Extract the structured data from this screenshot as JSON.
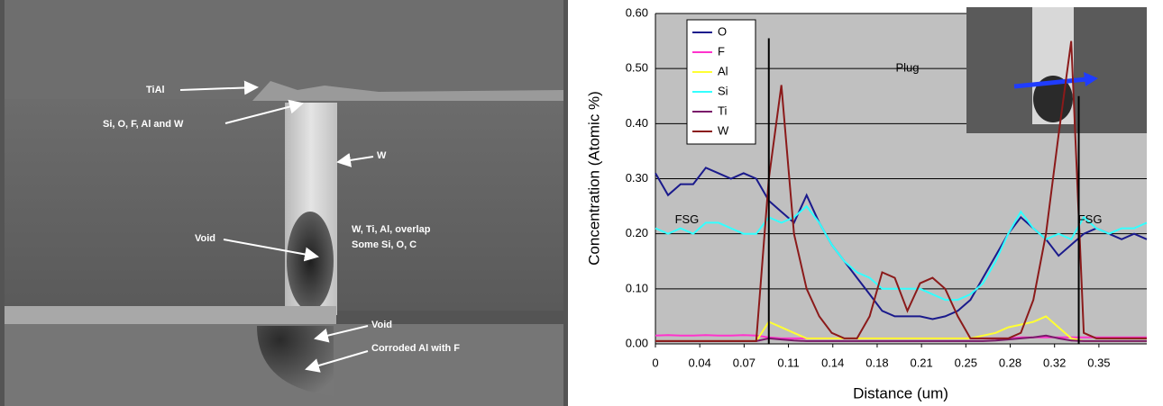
{
  "image": {
    "labels": [
      "TiAl",
      "Si, O, F, Al and W",
      "W",
      "W, Ti, Al, overlap",
      "Some Si, O, C",
      "Void",
      "Void",
      "Corroded Al with F"
    ]
  },
  "chart_data": {
    "type": "line",
    "ylabel": "Concentration (Atomic %)",
    "xlabel": "Distance (um)",
    "xlim": [
      0,
      0.39
    ],
    "ylim": [
      0,
      0.6
    ],
    "xticks": [
      {
        "value": 0,
        "label": "0"
      },
      {
        "value": 0.0352,
        "label": "0.04"
      },
      {
        "value": 0.0704,
        "label": "0.07"
      },
      {
        "value": 0.1056,
        "label": "0.11"
      },
      {
        "value": 0.1408,
        "label": "0.14"
      },
      {
        "value": 0.176,
        "label": "0.18"
      },
      {
        "value": 0.2112,
        "label": "0.21"
      },
      {
        "value": 0.2464,
        "label": "0.25"
      },
      {
        "value": 0.2816,
        "label": "0.28"
      },
      {
        "value": 0.3168,
        "label": "0.32"
      },
      {
        "value": 0.352,
        "label": "0.35"
      }
    ],
    "yticks": [
      {
        "value": 0,
        "label": "0.00"
      },
      {
        "value": 0.1,
        "label": "0.10"
      },
      {
        "value": 0.2,
        "label": "0.20"
      },
      {
        "value": 0.3,
        "label": "0.30"
      },
      {
        "value": 0.4,
        "label": "0.40"
      },
      {
        "value": 0.5,
        "label": "0.50"
      },
      {
        "value": 0.6,
        "label": "0.60"
      }
    ],
    "grid": true,
    "legend": "top-left",
    "annotations": [
      {
        "text": "Plug",
        "x": 0.2,
        "y": 0.5
      },
      {
        "text": "FSG",
        "x": 0.025,
        "y": 0.225
      },
      {
        "text": "FSG",
        "x": 0.345,
        "y": 0.225
      }
    ],
    "vlines": [
      {
        "x": 0.09,
        "top": 0.555
      },
      {
        "x": 0.336,
        "top": 0.45
      }
    ],
    "x": [
      0,
      0.01,
      0.02,
      0.03,
      0.04,
      0.05,
      0.06,
      0.07,
      0.08,
      0.09,
      0.1,
      0.11,
      0.12,
      0.13,
      0.14,
      0.15,
      0.16,
      0.17,
      0.18,
      0.19,
      0.2,
      0.21,
      0.22,
      0.23,
      0.24,
      0.25,
      0.26,
      0.27,
      0.28,
      0.29,
      0.3,
      0.31,
      0.32,
      0.33,
      0.34,
      0.35,
      0.36,
      0.37,
      0.38,
      0.39
    ],
    "series": [
      {
        "name": "O",
        "color": "#1a1a8c",
        "values": [
          0.31,
          0.27,
          0.29,
          0.29,
          0.32,
          0.31,
          0.3,
          0.31,
          0.3,
          0.26,
          0.24,
          0.22,
          0.27,
          0.22,
          0.18,
          0.15,
          0.12,
          0.09,
          0.06,
          0.05,
          0.05,
          0.05,
          0.045,
          0.05,
          0.06,
          0.08,
          0.12,
          0.16,
          0.2,
          0.23,
          0.21,
          0.19,
          0.16,
          0.18,
          0.2,
          0.21,
          0.2,
          0.19,
          0.2,
          0.19
        ]
      },
      {
        "name": "F",
        "color": "#ff33cc",
        "values": [
          0.015,
          0.016,
          0.015,
          0.015,
          0.016,
          0.015,
          0.015,
          0.016,
          0.015,
          0.012,
          0.01,
          0.01,
          0.01,
          0.01,
          0.01,
          0.01,
          0.01,
          0.01,
          0.01,
          0.01,
          0.01,
          0.01,
          0.01,
          0.01,
          0.01,
          0.01,
          0.01,
          0.01,
          0.01,
          0.012,
          0.012,
          0.012,
          0.012,
          0.012,
          0.012,
          0.012,
          0.012,
          0.012,
          0.012,
          0.012
        ]
      },
      {
        "name": "Al",
        "color": "#ffff33",
        "values": [
          0.005,
          0.005,
          0.005,
          0.005,
          0.005,
          0.005,
          0.005,
          0.005,
          0.005,
          0.04,
          0.03,
          0.02,
          0.01,
          0.01,
          0.01,
          0.01,
          0.01,
          0.01,
          0.01,
          0.01,
          0.01,
          0.01,
          0.01,
          0.01,
          0.01,
          0.01,
          0.015,
          0.02,
          0.03,
          0.035,
          0.04,
          0.05,
          0.03,
          0.01,
          0.005,
          0.005,
          0.005,
          0.005,
          0.005,
          0.005
        ]
      },
      {
        "name": "Si",
        "color": "#33ffff",
        "values": [
          0.21,
          0.2,
          0.21,
          0.2,
          0.22,
          0.22,
          0.21,
          0.2,
          0.2,
          0.23,
          0.22,
          0.23,
          0.25,
          0.22,
          0.18,
          0.15,
          0.13,
          0.12,
          0.1,
          0.1,
          0.1,
          0.1,
          0.09,
          0.08,
          0.08,
          0.09,
          0.11,
          0.15,
          0.2,
          0.24,
          0.21,
          0.19,
          0.2,
          0.19,
          0.23,
          0.21,
          0.2,
          0.21,
          0.21,
          0.22
        ]
      },
      {
        "name": "Ti",
        "color": "#7a1a6a",
        "values": [
          0.005,
          0.005,
          0.005,
          0.005,
          0.005,
          0.005,
          0.005,
          0.005,
          0.005,
          0.01,
          0.008,
          0.006,
          0.005,
          0.005,
          0.005,
          0.005,
          0.005,
          0.005,
          0.005,
          0.005,
          0.005,
          0.005,
          0.005,
          0.005,
          0.005,
          0.005,
          0.005,
          0.006,
          0.008,
          0.01,
          0.012,
          0.015,
          0.01,
          0.006,
          0.005,
          0.005,
          0.005,
          0.005,
          0.005,
          0.005
        ]
      },
      {
        "name": "W",
        "color": "#8b1a1a",
        "values": [
          0.005,
          0.005,
          0.005,
          0.005,
          0.005,
          0.005,
          0.005,
          0.005,
          0.005,
          0.3,
          0.47,
          0.2,
          0.1,
          0.05,
          0.02,
          0.01,
          0.01,
          0.05,
          0.13,
          0.12,
          0.06,
          0.11,
          0.12,
          0.1,
          0.05,
          0.01,
          0.01,
          0.01,
          0.01,
          0.02,
          0.08,
          0.2,
          0.38,
          0.55,
          0.02,
          0.01,
          0.01,
          0.01,
          0.01,
          0.01
        ]
      }
    ]
  }
}
